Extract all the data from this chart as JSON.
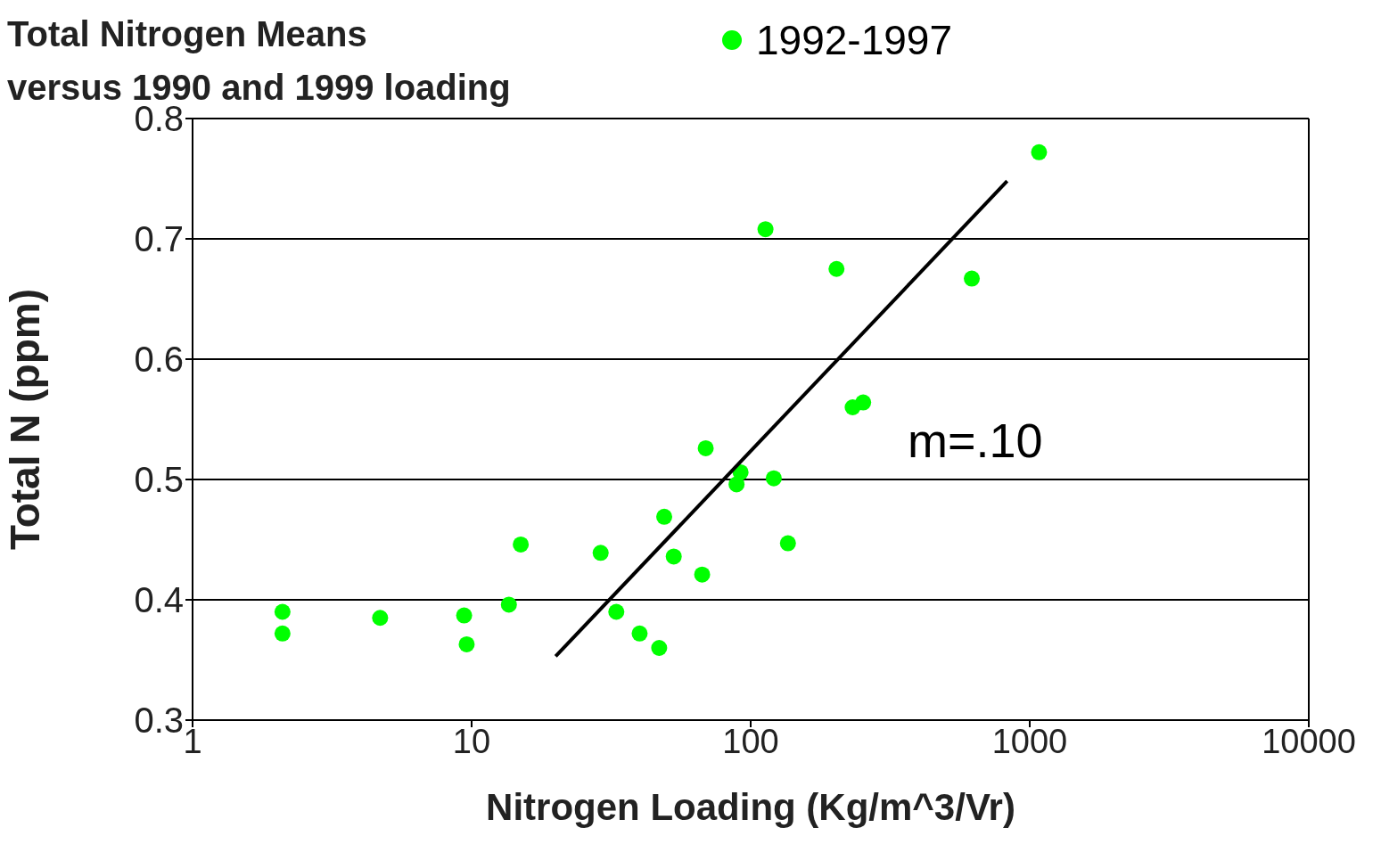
{
  "chart_data": {
    "type": "scatter",
    "title": "Total Nitrogen Means\nversus 1990 and 1999 loading",
    "xlabel": "Nitrogen Loading (Kg/m^3/Vr)",
    "ylabel": "Total N (ppm)",
    "annotations": [
      "m=.10"
    ],
    "log": "x",
    "xlim": [
      1,
      10000
    ],
    "xticks": [
      1,
      10,
      100,
      1000,
      10000
    ],
    "ylim": [
      0.3,
      0.8
    ],
    "yticks": [
      0.3,
      0.4,
      0.5,
      0.6,
      0.7,
      0.8
    ],
    "grid": "y",
    "legend": "top",
    "marker": "circle",
    "series": [
      {
        "name": "1992-1997",
        "color": "#00ff00",
        "x": [
          2.1,
          2.1,
          4.7,
          9.4,
          9.6,
          13.6,
          15,
          29,
          33,
          40,
          47,
          49,
          53,
          67,
          69,
          89,
          92,
          113,
          121,
          136,
          203,
          232,
          253,
          620,
          1080
        ],
        "values": [
          0.39,
          0.372,
          0.385,
          0.387,
          0.363,
          0.396,
          0.446,
          0.439,
          0.39,
          0.372,
          0.36,
          0.469,
          0.436,
          0.421,
          0.526,
          0.496,
          0.506,
          0.708,
          0.501,
          0.447,
          0.675,
          0.56,
          0.564,
          0.667,
          0.772
        ]
      },
      {
        "type": "line",
        "color": "#000000",
        "x": [
          20,
          830
        ],
        "values": [
          0.353,
          0.748
        ],
        "marker": "none"
      }
    ]
  }
}
